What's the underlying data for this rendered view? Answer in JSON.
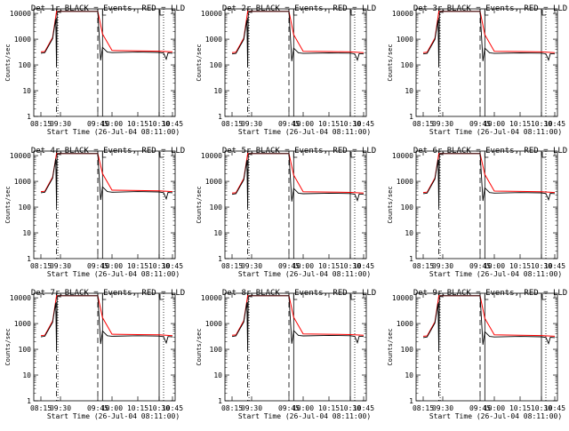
{
  "figure": {
    "xlabel": "Start Time (26-Jul-04 08:11:00)",
    "ylabel": "Counts/sec",
    "panel_titles": [
      "Det 1r BLACK = Events, RED = LLD",
      "Det 2r BLACK = Events, RED = LLD",
      "Det 3r BLACK = Events, RED = LLD",
      "Det 4r BLACK = Events, RED = LLD",
      "Det 5r BLACK = Events, RED = LLD",
      "Det 6r BLACK = Events, RED = LLD",
      "Det 7r BLACK = Events, RED = LLD",
      "Det 8r BLACK = Events, RED = LLD",
      "Det 9r BLACK = Events, RED = LLD"
    ],
    "x_tick_labels": [
      "08:15",
      "09:30",
      "09:45",
      "10:00",
      "10:15",
      "10:30",
      "10:45"
    ],
    "y_tick_labels": [
      "10000",
      "1000",
      "100",
      "10",
      "1"
    ],
    "colors": {
      "events": "#000000",
      "lld": "#ff0000",
      "background": "#ffffff"
    }
  },
  "chart_data": {
    "type": "line",
    "layout": "3x3 grid of small multiples",
    "y_scale": "log",
    "ylim": [
      1,
      15000
    ],
    "x_unit": "time (HH:MM)",
    "x_ticks": [
      "08:15",
      "09:30",
      "09:45",
      "10:00",
      "10:15",
      "10:30",
      "10:45"
    ],
    "title_template": "Det {n}r BLACK = Events, RED = LLD",
    "series_legend": {
      "BLACK": "Events",
      "RED": "LLD"
    },
    "common_shape_x": [
      "08:15",
      "08:30",
      "09:00",
      "09:15",
      "09:20",
      "09:30",
      "09:45",
      "09:50",
      "10:00",
      "10:15",
      "10:30",
      "10:45"
    ],
    "common_shape_lld": [
      300,
      310,
      1100,
      12000,
      12000,
      12000,
      12000,
      1500,
      340,
      330,
      320,
      300
    ],
    "detectors": [
      {
        "det": "1r",
        "events_baseline": 300,
        "lld_baseline": 320
      },
      {
        "det": "2r",
        "events_baseline": 280,
        "lld_baseline": 300
      },
      {
        "det": "3r",
        "events_baseline": 280,
        "lld_baseline": 300
      },
      {
        "det": "4r",
        "events_baseline": 380,
        "lld_baseline": 400
      },
      {
        "det": "5r",
        "events_baseline": 330,
        "lld_baseline": 350
      },
      {
        "det": "6r",
        "events_baseline": 350,
        "lld_baseline": 370
      },
      {
        "det": "7r",
        "events_baseline": 320,
        "lld_baseline": 340
      },
      {
        "det": "8r",
        "events_baseline": 330,
        "lld_baseline": 350
      },
      {
        "det": "9r",
        "events_baseline": 300,
        "lld_baseline": 320
      }
    ],
    "vertical_markers": [
      {
        "style": "dashed",
        "x": "09:15"
      },
      {
        "style": "dotted",
        "x": "09:20"
      },
      {
        "style": "dashed",
        "x": "09:45"
      },
      {
        "style": "solid",
        "x": "09:50"
      },
      {
        "style": "solid",
        "x": "10:30"
      },
      {
        "style": "dotted",
        "x": "10:35"
      }
    ],
    "grid": false
  }
}
